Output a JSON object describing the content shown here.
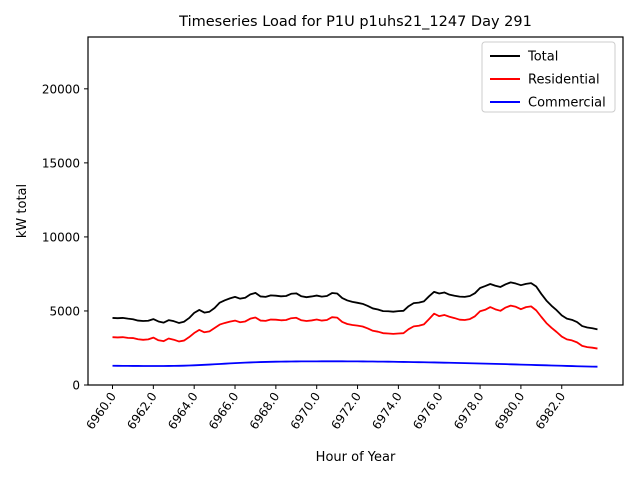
{
  "figure": {
    "background": "#ffffff",
    "title": "Timeseries Load for P1U p1uhs21_1247  Day 291"
  },
  "chart_data": {
    "type": "line",
    "title": "Timeseries Load for P1U p1uhs21_1247  Day 291",
    "xlabel": "Hour of Year",
    "ylabel": "kW total",
    "xlim": [
      6958.8,
      6985.0
    ],
    "ylim": [
      0,
      23500
    ],
    "grid": false,
    "legend": {
      "position": "upper right",
      "entries": [
        "Total",
        "Residential",
        "Commercial"
      ]
    },
    "xticks": {
      "values": [
        6960,
        6962,
        6964,
        6966,
        6968,
        6970,
        6972,
        6974,
        6976,
        6978,
        6980,
        6982
      ],
      "labels": [
        "6960.0",
        "6962.0",
        "6964.0",
        "6966.0",
        "6968.0",
        "6970.0",
        "6972.0",
        "6974.0",
        "6976.0",
        "6978.0",
        "6980.0",
        "6982.0"
      ],
      "rotation_deg": -55
    },
    "yticks": {
      "values": [
        0,
        5000,
        10000,
        15000,
        20000
      ],
      "labels": [
        "0",
        "5000",
        "10000",
        "15000",
        "20000"
      ]
    },
    "x": [
      6960.0,
      6960.25,
      6960.5,
      6960.75,
      6961.0,
      6961.25,
      6961.5,
      6961.75,
      6962.0,
      6962.25,
      6962.5,
      6962.75,
      6963.0,
      6963.25,
      6963.5,
      6963.75,
      6964.0,
      6964.25,
      6964.5,
      6964.75,
      6965.0,
      6965.25,
      6965.5,
      6965.75,
      6966.0,
      6966.25,
      6966.5,
      6966.75,
      6967.0,
      6967.25,
      6967.5,
      6967.75,
      6968.0,
      6968.25,
      6968.5,
      6968.75,
      6969.0,
      6969.25,
      6969.5,
      6969.75,
      6970.0,
      6970.25,
      6970.5,
      6970.75,
      6971.0,
      6971.25,
      6971.5,
      6971.75,
      6972.0,
      6972.25,
      6972.5,
      6972.75,
      6973.0,
      6973.25,
      6973.5,
      6973.75,
      6974.0,
      6974.25,
      6974.5,
      6974.75,
      6975.0,
      6975.25,
      6975.5,
      6975.75,
      6976.0,
      6976.25,
      6976.5,
      6976.75,
      6977.0,
      6977.25,
      6977.5,
      6977.75,
      6978.0,
      6978.25,
      6978.5,
      6978.75,
      6979.0,
      6979.25,
      6979.5,
      6979.75,
      6980.0,
      6980.25,
      6980.5,
      6980.75,
      6981.0,
      6981.25,
      6981.5,
      6981.75,
      6982.0,
      6982.25,
      6982.5,
      6982.75,
      6983.0,
      6983.25,
      6983.5,
      6983.75
    ],
    "series": [
      {
        "name": "Total",
        "color": "#000000",
        "values": [
          4530,
          4510,
          4530,
          4480,
          4440,
          4350,
          4320,
          4340,
          4450,
          4290,
          4210,
          4380,
          4310,
          4190,
          4270,
          4520,
          4870,
          5070,
          4890,
          4950,
          5200,
          5560,
          5720,
          5850,
          5950,
          5830,
          5890,
          6120,
          6220,
          5980,
          5950,
          6050,
          6030,
          5990,
          6010,
          6160,
          6190,
          5990,
          5930,
          5980,
          6040,
          5970,
          6010,
          6210,
          6180,
          5870,
          5710,
          5610,
          5550,
          5480,
          5340,
          5170,
          5100,
          4990,
          4980,
          4950,
          4990,
          5010,
          5320,
          5530,
          5560,
          5650,
          5990,
          6290,
          6180,
          6250,
          6100,
          6030,
          5970,
          5950,
          6010,
          6200,
          6550,
          6680,
          6820,
          6700,
          6620,
          6800,
          6930,
          6850,
          6740,
          6830,
          6880,
          6650,
          6150,
          5700,
          5350,
          5050,
          4700,
          4480,
          4400,
          4250,
          3980,
          3880,
          3830,
          3760
        ]
      },
      {
        "name": "Residential",
        "color": "#ff0000",
        "values": [
          3230,
          3210,
          3230,
          3180,
          3170,
          3090,
          3050,
          3080,
          3200,
          3020,
          2960,
          3140,
          3060,
          2940,
          3000,
          3230,
          3510,
          3720,
          3560,
          3620,
          3850,
          4080,
          4190,
          4280,
          4350,
          4240,
          4290,
          4480,
          4560,
          4350,
          4330,
          4420,
          4410,
          4370,
          4390,
          4510,
          4540,
          4370,
          4320,
          4360,
          4420,
          4350,
          4390,
          4580,
          4550,
          4260,
          4120,
          4050,
          4010,
          3950,
          3820,
          3660,
          3600,
          3500,
          3480,
          3450,
          3480,
          3500,
          3770,
          3960,
          4000,
          4090,
          4450,
          4820,
          4650,
          4730,
          4610,
          4520,
          4410,
          4390,
          4450,
          4640,
          4980,
          5080,
          5260,
          5110,
          5010,
          5230,
          5360,
          5280,
          5120,
          5260,
          5310,
          5040,
          4600,
          4180,
          3860,
          3580,
          3270,
          3080,
          3010,
          2880,
          2640,
          2560,
          2520,
          2460
        ]
      },
      {
        "name": "Commercial",
        "color": "#0000ff",
        "values": [
          1300,
          1295,
          1292,
          1290,
          1288,
          1286,
          1285,
          1284,
          1283,
          1283,
          1284,
          1286,
          1290,
          1296,
          1305,
          1316,
          1330,
          1346,
          1363,
          1381,
          1400,
          1420,
          1440,
          1459,
          1477,
          1494,
          1510,
          1524,
          1537,
          1548,
          1558,
          1566,
          1573,
          1579,
          1584,
          1588,
          1591,
          1594,
          1596,
          1597,
          1598,
          1599,
          1600,
          1600,
          1600,
          1599,
          1598,
          1596,
          1594,
          1591,
          1588,
          1585,
          1581,
          1577,
          1573,
          1568,
          1563,
          1558,
          1553,
          1547,
          1541,
          1535,
          1529,
          1522,
          1515,
          1508,
          1501,
          1493,
          1485,
          1477,
          1469,
          1461,
          1452,
          1443,
          1434,
          1425,
          1416,
          1407,
          1398,
          1388,
          1378,
          1368,
          1358,
          1348,
          1338,
          1328,
          1318,
          1308,
          1298,
          1288,
          1278,
          1268,
          1258,
          1250,
          1243,
          1238
        ]
      }
    ]
  }
}
